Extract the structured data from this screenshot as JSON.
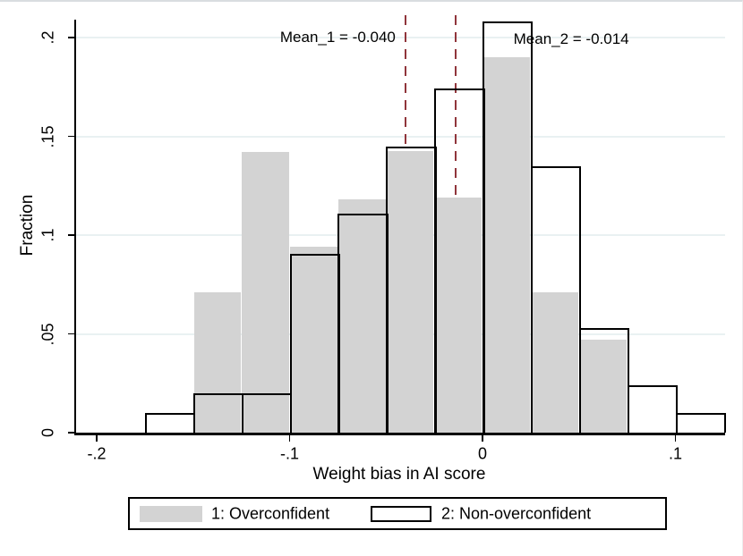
{
  "chart_data": {
    "type": "histogram-bar-overlay",
    "xlabel": "Weight bias in AI score",
    "ylabel": "Fraction",
    "bin_start": -0.175,
    "bin_width": 0.025,
    "xlim": [
      -0.21,
      0.127
    ],
    "ylim": [
      0,
      0.211
    ],
    "grid": true,
    "x_ticks": {
      "values": [
        -0.2,
        -0.1,
        0,
        0.1
      ],
      "labels": [
        "-.2",
        "-.1",
        "0",
        ".1"
      ]
    },
    "y_ticks": {
      "values": [
        0,
        0.05,
        0.1,
        0.15,
        0.2
      ],
      "labels": [
        "0",
        ".05",
        ".1",
        ".15",
        ".2"
      ]
    },
    "series": [
      {
        "name": "1: Overconfident",
        "style": "filled",
        "fill": "#d3d3d3",
        "values": [
          0,
          0.071,
          0.142,
          0.094,
          0.118,
          0.1425,
          0.119,
          0.19,
          0.071,
          0.047,
          0,
          0
        ]
      },
      {
        "name": "2: Non-overconfident",
        "style": "outline",
        "stroke": "#000000",
        "values": [
          0.01,
          0.02,
          0.02,
          0.0905,
          0.111,
          0.145,
          0.174,
          0.208,
          0.135,
          0.053,
          0.024,
          0.01
        ]
      }
    ],
    "annotations": [
      {
        "type": "vline",
        "x": -0.04,
        "text": "Mean_1 = -0.040",
        "label_x": -0.075,
        "label_y": 0.2,
        "color": "#90353b"
      },
      {
        "type": "vline",
        "x": -0.014,
        "text": "Mean_2 = -0.014",
        "label_x": 0.046,
        "label_y": 0.199,
        "color": "#90353b"
      }
    ],
    "legend": {
      "position": "bottom",
      "entries": [
        "1: Overconfident",
        "2: Non-overconfident"
      ]
    },
    "colors": {
      "grid": "#e9f1f2",
      "axis": "#000000",
      "text": "#000000",
      "mean_line": "#90353b",
      "bar_fill": "#d3d3d3"
    }
  }
}
